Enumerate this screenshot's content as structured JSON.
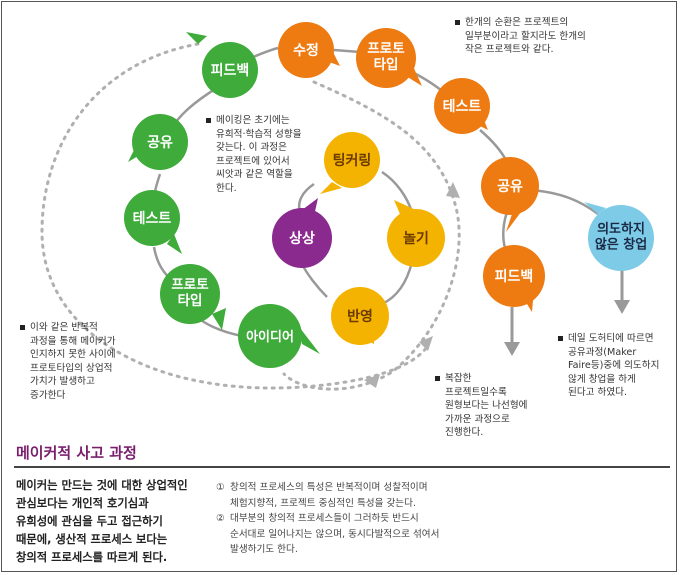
{
  "colors": {
    "green": "#3eab3b",
    "orange": "#ee7a12",
    "yellow": "#f4b300",
    "purple": "#8b2a8e",
    "light_blue": "#7ecbe8",
    "connector": "#999999",
    "dotted": "#b0b0b0",
    "title_purple": "#7a1f6e"
  },
  "diagram": {
    "green_loop": [
      "피드백",
      "공유",
      "테스트",
      "프로토\n타입",
      "아이디어"
    ],
    "orange_loop": [
      "수정",
      "프로토\n타입",
      "테스트",
      "공유",
      "피드백"
    ],
    "center_loop": [
      "팅커링",
      "놀기",
      "반영"
    ],
    "center_node": "상상",
    "outcome_node": "의도하지\n않은 창업"
  },
  "notes": {
    "top_right": [
      "한개의 순환은 프로젝트의",
      "일부분이라고 할지라도 한개의",
      "작은 프로젝트와 같다."
    ],
    "maker_center": [
      "메이킹은 초기에는",
      "유희적·학습적 성향을",
      "갖는다.  이 과정은",
      "프로젝트에 있어서",
      "씨앗과 같은 역할을",
      "한다."
    ],
    "left": [
      "이와 같은 반복적",
      "과정을 통해 메이커가",
      "인지하지 못한 사이에",
      "프로토타입의 상업적",
      "가치가 발생하고",
      "증가한다"
    ],
    "bottom_center": [
      "복잡한",
      "프로젝트일수록",
      "원형보다는 나선형에",
      "가까운 과정으로",
      "진행한다."
    ],
    "bottom_right": [
      "데일 도허티에 따르면",
      "공유과정(Maker",
      "Faire등)중에 의도하지",
      "않게 창업을 하게",
      "된다고 하였다."
    ]
  },
  "section": {
    "title": "메이커적 사고 과정",
    "summary": [
      "메이커는 만드는 것에 대한 상업적인",
      "관심보다는 개인적 호기심과",
      "유희성에 관심을 두고 접근하기",
      "때문에, 생산적 프로세스 보다는",
      "창의적 프로세스를 따르게 된다."
    ],
    "points": [
      {
        "num": "①",
        "lines": [
          "창의적 프로세스의 특성은 반복적이며 성찰적이며",
          "체험지향적, 프로젝트 중심적인 특성을 갖는다."
        ]
      },
      {
        "num": "②",
        "lines": [
          "대부분의 창의적 프로세스들이 그러하듯 반드시",
          "순서대로 일어나지는 않으며, 동시다발적으로 섞여서",
          "발생하기도 한다."
        ]
      }
    ]
  }
}
